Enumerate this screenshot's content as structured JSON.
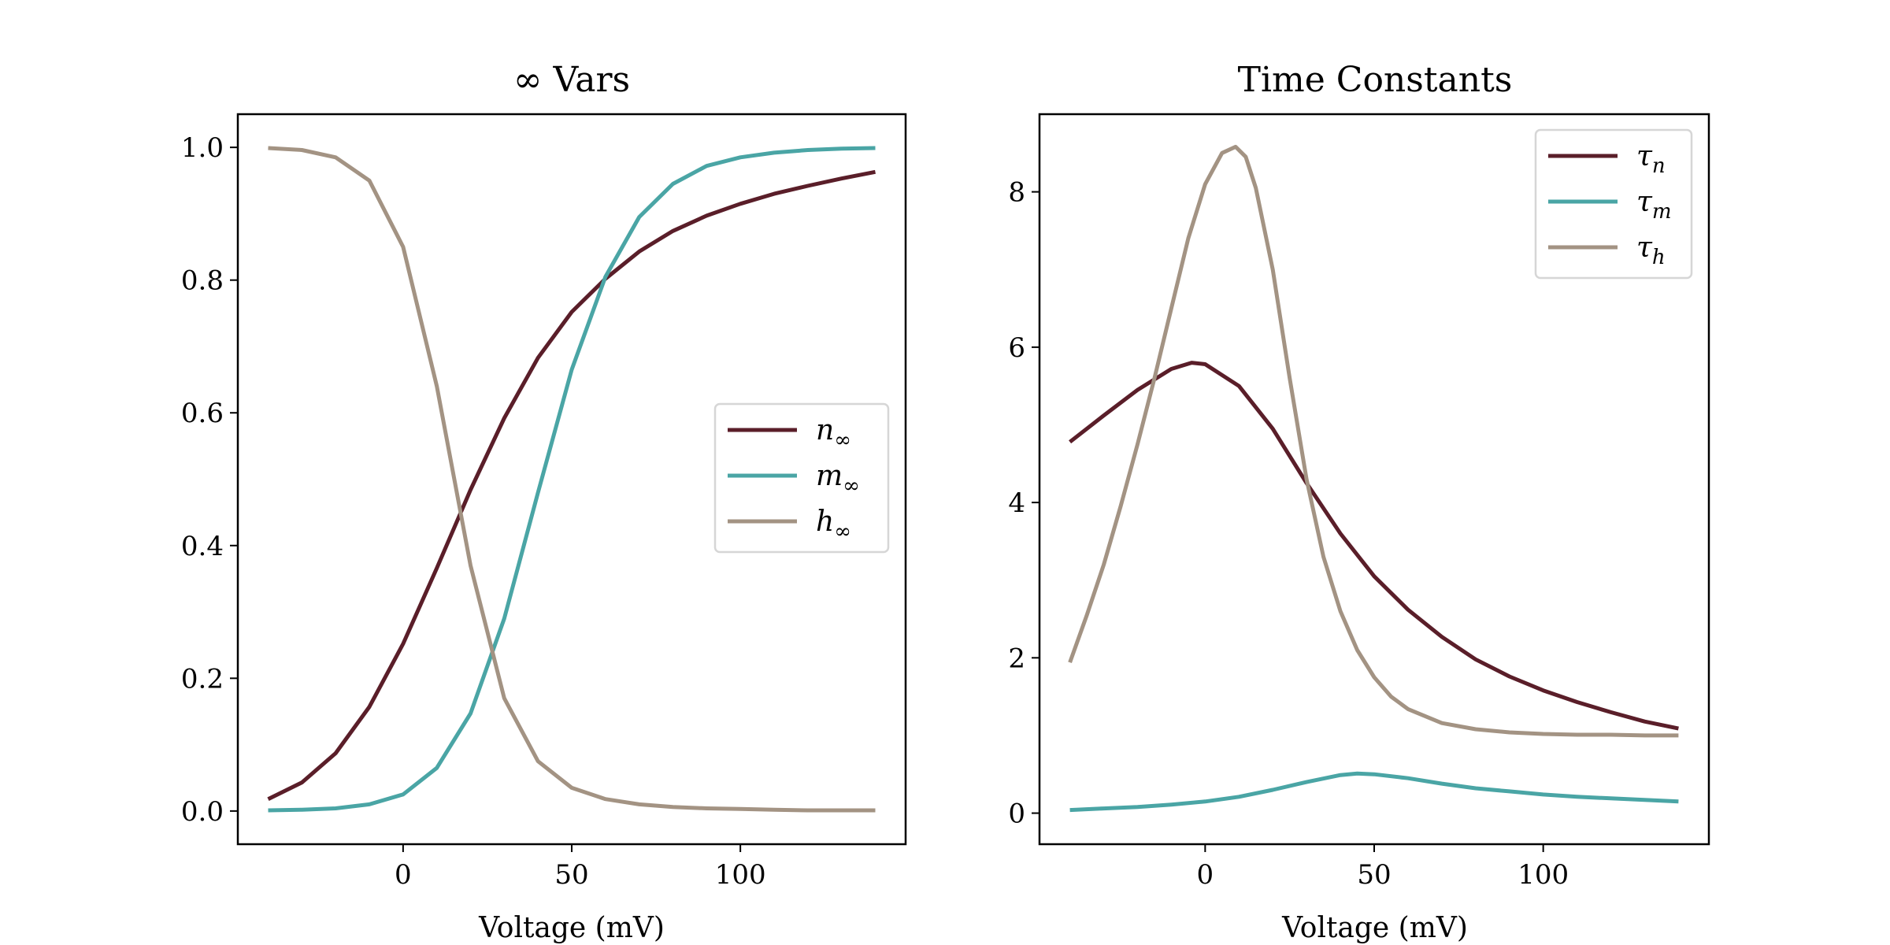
{
  "colors": {
    "n": "#5a1e29",
    "m": "#4aa5a5",
    "h": "#a39383"
  },
  "chart_data": [
    {
      "type": "line",
      "title": "∞ Vars",
      "xlabel": "Voltage (mV)",
      "ylabel": "",
      "xlim": [
        -49,
        149
      ],
      "ylim": [
        -0.05,
        1.05
      ],
      "xticks": [
        0,
        50,
        100
      ],
      "xtick_labels": [
        "0",
        "50",
        "100"
      ],
      "yticks": [
        0.0,
        0.2,
        0.4,
        0.6,
        0.8,
        1.0
      ],
      "ytick_labels": [
        "0.0",
        "0.2",
        "0.4",
        "0.6",
        "0.8",
        "1.0"
      ],
      "legend_position": "center-right",
      "grid": false,
      "series": [
        {
          "key": "n",
          "name": "n",
          "sub": "∞",
          "x": [
            -40,
            -30,
            -20,
            -10,
            0,
            10,
            20,
            30,
            40,
            50,
            60,
            70,
            80,
            90,
            100,
            110,
            120,
            130,
            140
          ],
          "y": [
            0.018,
            0.043,
            0.087,
            0.157,
            0.252,
            0.366,
            0.484,
            0.592,
            0.683,
            0.752,
            0.802,
            0.843,
            0.874,
            0.897,
            0.915,
            0.93,
            0.942,
            0.953,
            0.963
          ]
        },
        {
          "key": "m",
          "name": "m",
          "sub": "∞",
          "x": [
            -40,
            -30,
            -20,
            -10,
            0,
            10,
            20,
            30,
            40,
            50,
            60,
            70,
            80,
            90,
            100,
            110,
            120,
            130,
            140
          ],
          "y": [
            0.001,
            0.002,
            0.004,
            0.01,
            0.025,
            0.065,
            0.147,
            0.29,
            0.48,
            0.665,
            0.805,
            0.895,
            0.945,
            0.972,
            0.985,
            0.992,
            0.996,
            0.998,
            0.999
          ]
        },
        {
          "key": "h",
          "name": "h",
          "sub": "∞",
          "x": [
            -40,
            -30,
            -20,
            -10,
            0,
            10,
            20,
            30,
            40,
            50,
            60,
            70,
            80,
            90,
            100,
            110,
            120,
            130,
            140
          ],
          "y": [
            0.999,
            0.996,
            0.985,
            0.95,
            0.85,
            0.64,
            0.37,
            0.17,
            0.075,
            0.035,
            0.018,
            0.01,
            0.006,
            0.004,
            0.003,
            0.002,
            0.001,
            0.001,
            0.001
          ]
        }
      ]
    },
    {
      "type": "line",
      "title": "Time Constants",
      "xlabel": "Voltage (mV)",
      "ylabel": "",
      "xlim": [
        -49,
        149
      ],
      "ylim": [
        -0.4,
        9.0
      ],
      "xticks": [
        0,
        50,
        100
      ],
      "xtick_labels": [
        "0",
        "50",
        "100"
      ],
      "yticks": [
        0,
        2,
        4,
        6,
        8
      ],
      "ytick_labels": [
        "0",
        "2",
        "4",
        "6",
        "8"
      ],
      "legend_position": "top-right",
      "grid": false,
      "series": [
        {
          "key": "n",
          "name": "τ",
          "sub": "n",
          "x": [
            -40,
            -30,
            -20,
            -10,
            -4,
            0,
            10,
            20,
            30,
            40,
            50,
            60,
            70,
            80,
            90,
            100,
            110,
            120,
            130,
            140
          ],
          "y": [
            4.78,
            5.12,
            5.45,
            5.72,
            5.8,
            5.78,
            5.5,
            4.95,
            4.25,
            3.6,
            3.05,
            2.62,
            2.27,
            1.98,
            1.76,
            1.58,
            1.43,
            1.3,
            1.18,
            1.09
          ]
        },
        {
          "key": "m",
          "name": "τ",
          "sub": "m",
          "x": [
            -40,
            -30,
            -20,
            -10,
            0,
            10,
            20,
            30,
            40,
            45,
            50,
            60,
            70,
            80,
            90,
            100,
            110,
            120,
            130,
            140
          ],
          "y": [
            0.04,
            0.06,
            0.08,
            0.11,
            0.15,
            0.21,
            0.3,
            0.4,
            0.49,
            0.51,
            0.5,
            0.45,
            0.38,
            0.32,
            0.28,
            0.24,
            0.21,
            0.19,
            0.17,
            0.15
          ]
        },
        {
          "key": "h",
          "name": "τ",
          "sub": "h",
          "x": [
            -40,
            -35,
            -30,
            -25,
            -20,
            -15,
            -10,
            -5,
            0,
            5,
            9,
            12,
            15,
            20,
            25,
            30,
            35,
            40,
            45,
            50,
            55,
            60,
            70,
            80,
            90,
            100,
            110,
            120,
            130,
            140
          ],
          "y": [
            1.94,
            2.55,
            3.2,
            3.95,
            4.75,
            5.6,
            6.5,
            7.4,
            8.1,
            8.5,
            8.58,
            8.45,
            8.05,
            7.0,
            5.6,
            4.3,
            3.3,
            2.6,
            2.1,
            1.75,
            1.5,
            1.34,
            1.16,
            1.08,
            1.04,
            1.02,
            1.01,
            1.01,
            1.0,
            1.0
          ]
        }
      ]
    }
  ]
}
